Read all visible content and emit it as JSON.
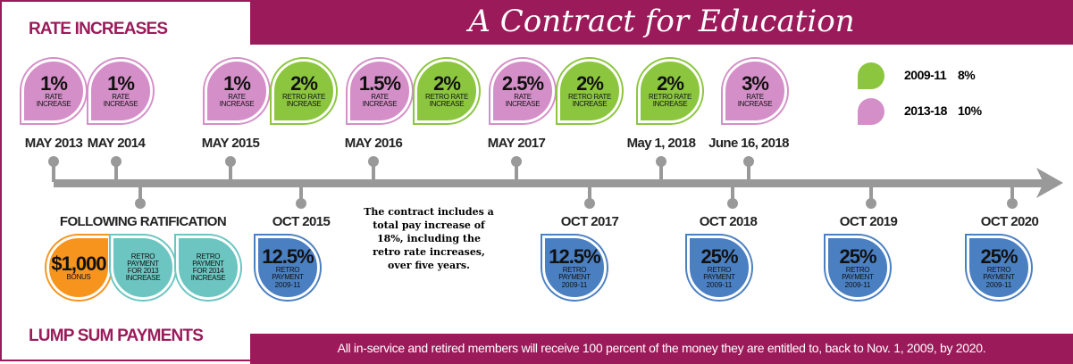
{
  "header": {
    "title": "A Contract for Education"
  },
  "sections": {
    "rate_increases": "RATE INCREASES",
    "lump_sum_payments": "LUMP SUM PAYMENTS"
  },
  "legend": [
    {
      "label": "2009-11",
      "value": "8%",
      "color": "#8cc63f"
    },
    {
      "label": "2013-18",
      "value": "10%",
      "color": "#d48fc8"
    }
  ],
  "top_events": [
    {
      "date": "MAY 2013",
      "badges": [
        {
          "value": "1%",
          "label": "RATE INCREASE",
          "color": "#d48fc8"
        }
      ]
    },
    {
      "date": "MAY 2014",
      "badges": [
        {
          "value": "1%",
          "label": "RATE INCREASE",
          "color": "#d48fc8"
        }
      ]
    },
    {
      "date": "MAY 2015",
      "badges": [
        {
          "value": "1%",
          "label": "RATE INCREASE",
          "color": "#d48fc8"
        },
        {
          "value": "2%",
          "label": "RETRO RATE INCREASE",
          "color": "#8cc63f"
        }
      ]
    },
    {
      "date": "MAY 2016",
      "badges": [
        {
          "value": "1.5%",
          "label": "RATE INCREASE",
          "color": "#d48fc8"
        },
        {
          "value": "2%",
          "label": "RETRO RATE INCREASE",
          "color": "#8cc63f"
        }
      ]
    },
    {
      "date": "MAY 2017",
      "badges": [
        {
          "value": "2.5%",
          "label": "RATE INCREASE",
          "color": "#d48fc8"
        },
        {
          "value": "2%",
          "label": "RETRO RATE INCREASE",
          "color": "#8cc63f"
        }
      ]
    },
    {
      "date": "May 1, 2018",
      "badges": [
        {
          "value": "2%",
          "label": "RETRO RATE INCREASE",
          "color": "#8cc63f"
        }
      ]
    },
    {
      "date": "June 16, 2018",
      "badges": [
        {
          "value": "3%",
          "label": "RATE INCREASE",
          "color": "#d48fc8"
        }
      ]
    }
  ],
  "bottom_events": [
    {
      "date": "FOLLOWING RATIFICATION",
      "badges": [
        {
          "value": "$1,000",
          "label": "BONUS",
          "color": "#f7941d"
        },
        {
          "label": "RETRO PAYMENT FOR 2013 INCREASE",
          "color": "#6cc5c0"
        },
        {
          "label": "RETRO PAYMENT FOR 2014 INCREASE",
          "color": "#6cc5c0"
        }
      ]
    },
    {
      "date": "OCT 2015",
      "badges": [
        {
          "value": "12.5%",
          "label": "RETRO PAYMENT",
          "sub": "2009-11",
          "color": "#4a7fc1"
        }
      ]
    },
    {
      "date": "OCT 2017",
      "badges": [
        {
          "value": "12.5%",
          "label": "RETRO PAYMENT",
          "sub": "2009-11",
          "color": "#4a7fc1"
        }
      ]
    },
    {
      "date": "OCT 2018",
      "badges": [
        {
          "value": "25%",
          "label": "RETRO PAYMENT",
          "sub": "2009-11",
          "color": "#4a7fc1"
        }
      ]
    },
    {
      "date": "OCT 2019",
      "badges": [
        {
          "value": "25%",
          "label": "RETRO PAYMENT",
          "sub": "2009-11",
          "color": "#4a7fc1"
        }
      ]
    },
    {
      "date": "OCT 2020",
      "badges": [
        {
          "value": "25%",
          "label": "RETRO PAYMENT",
          "sub": "2009-11",
          "color": "#4a7fc1"
        }
      ]
    }
  ],
  "note": "The contract includes a total pay increase of 18%, including the retro rate increases, over five years.",
  "footer": "All in-service and retired members will receive 100 percent of the money they are entitled to, back to Nov. 1, 2009, by 2020."
}
